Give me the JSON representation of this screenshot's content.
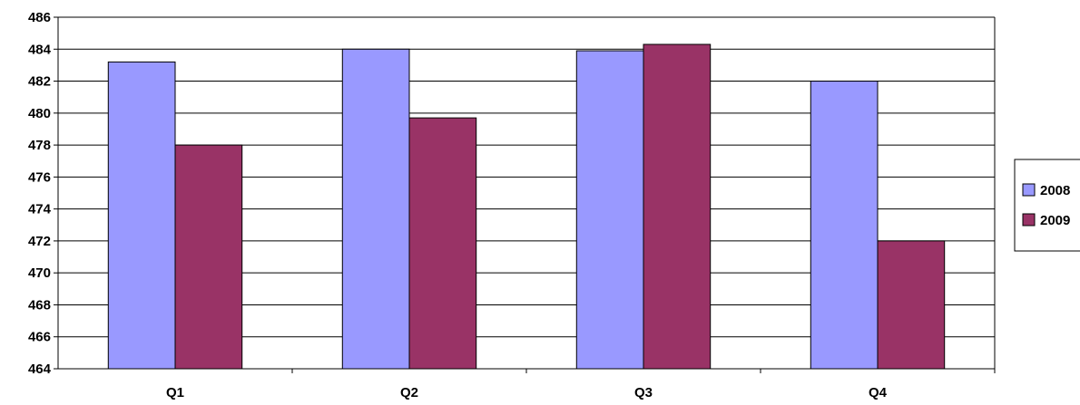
{
  "chart_data": {
    "type": "bar",
    "title": "",
    "xlabel": "",
    "ylabel": "",
    "categories": [
      "Q1",
      "Q2",
      "Q3",
      "Q4"
    ],
    "series": [
      {
        "name": "2008",
        "values": [
          483.2,
          484.0,
          483.9,
          482.0
        ],
        "color": "#9999FF"
      },
      {
        "name": "2009",
        "values": [
          478.0,
          479.7,
          484.3,
          472.0
        ],
        "color": "#993366"
      }
    ],
    "ylim": [
      464,
      486
    ],
    "yticks": [
      464,
      466,
      468,
      470,
      472,
      474,
      476,
      478,
      480,
      482,
      484,
      486
    ],
    "grid": true,
    "legend_position": "right"
  }
}
